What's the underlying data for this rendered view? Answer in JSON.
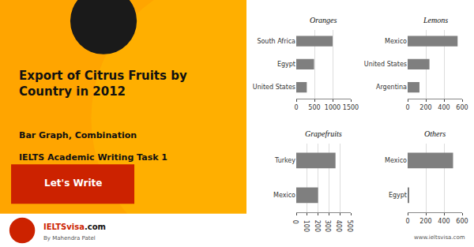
{
  "title": "Export of Citrus Fruits by\nCountry in 2012",
  "subtitle": "Bar Graph, Combination",
  "annotations": [
    "IELTS Academic Writing Task 1",
    "Let's Write",
    "IELTSvisa",
    ".com",
    "By Mahendra Patel",
    "www.ieltsvisa.com"
  ],
  "chart_data": [
    {
      "type": "bar",
      "orientation": "horizontal",
      "title": "Oranges",
      "categories": [
        "South Africa",
        "Egypt",
        "United States"
      ],
      "values": [
        1000,
        490,
        290
      ],
      "color": "#7f7f7f",
      "xlim": [
        0,
        1500
      ],
      "xticks": [
        0,
        500,
        1000,
        1500
      ],
      "grid": true
    },
    {
      "type": "bar",
      "orientation": "horizontal",
      "title": "Lemons",
      "categories": [
        "Mexico",
        "United States",
        "Argentina"
      ],
      "values": [
        550,
        240,
        130
      ],
      "color": "#7f7f7f",
      "xlim": [
        0,
        600
      ],
      "xticks": [
        0,
        200,
        400,
        600
      ],
      "grid": true
    },
    {
      "type": "bar",
      "orientation": "horizontal",
      "title": "Grapefruits",
      "categories": [
        "Turkey",
        "Mexico"
      ],
      "values": [
        360,
        200
      ],
      "color": "#7f7f7f",
      "xlim": [
        0,
        500
      ],
      "xticks": [
        0,
        100,
        200,
        300,
        400,
        500
      ],
      "grid": true
    },
    {
      "type": "bar",
      "orientation": "horizontal",
      "title": "Others",
      "categories": [
        "Mexico",
        "Egypt"
      ],
      "values": [
        500,
        15
      ],
      "color": "#7f7f7f",
      "xlim": [
        0,
        600
      ],
      "xticks": [
        0,
        200,
        400,
        600
      ],
      "grid": true
    }
  ]
}
